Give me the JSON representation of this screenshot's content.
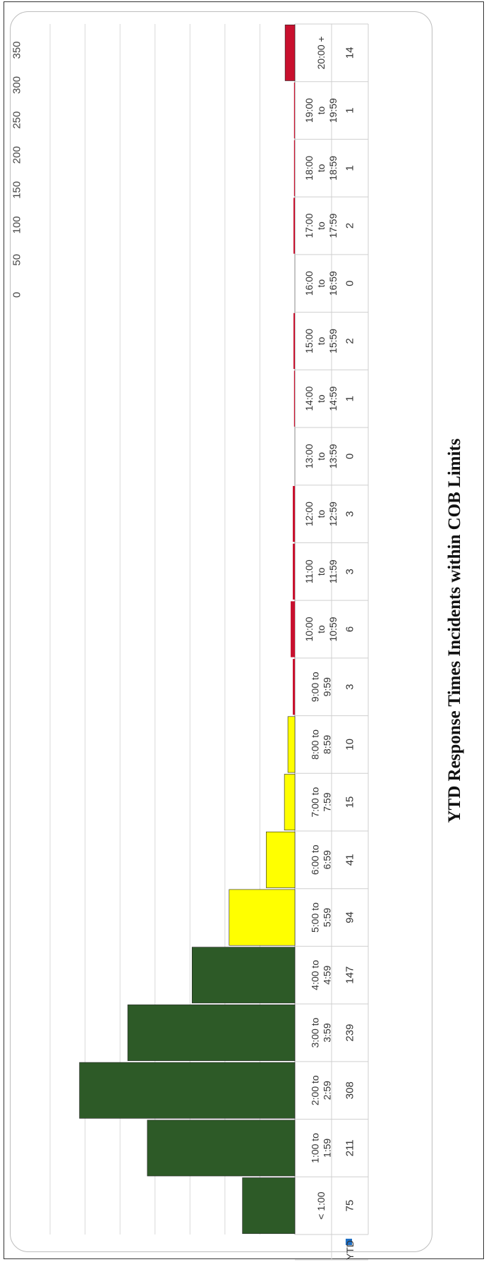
{
  "chart_data": {
    "type": "bar",
    "title": "YTD Response Times Incidents within COB Limits",
    "series_label": "YTD",
    "legend_color": "#1f6fc4",
    "categories": [
      "< 1:00",
      "1:00 to 1:59",
      "2:00 to 2:59",
      "3:00 to 3:59",
      "4:00 to 4:59",
      "5:00 to 5:59",
      "6:00 to 6:59",
      "7:00 to 7:59",
      "8:00 to 8:59",
      "9:00 to 9:59",
      "10:00 to 10:59",
      "11:00 to 11:59",
      "12:00 to 12:59",
      "13:00 to 13:59",
      "14:00 to 14:59",
      "15:00 to 15:59",
      "16:00 to 16:59",
      "17:00 to 17:59",
      "18:00 to 18:59",
      "19:00 to 19:59",
      "20:00 +"
    ],
    "category_lines": [
      [
        "< 1:00"
      ],
      [
        "1:00 to",
        "1:59"
      ],
      [
        "2:00 to",
        "2:59"
      ],
      [
        "3:00 to",
        "3:59"
      ],
      [
        "4:00 to",
        "4:59"
      ],
      [
        "5:00 to",
        "5:59"
      ],
      [
        "6:00 to",
        "6:59"
      ],
      [
        "7:00 to",
        "7:59"
      ],
      [
        "8:00 to",
        "8:59"
      ],
      [
        "9:00 to",
        "9:59"
      ],
      [
        "10:00",
        "to",
        "10:59"
      ],
      [
        "11:00",
        "to",
        "11:59"
      ],
      [
        "12:00",
        "to",
        "12:59"
      ],
      [
        "13:00",
        "to",
        "13:59"
      ],
      [
        "14:00",
        "to",
        "14:59"
      ],
      [
        "15:00",
        "to",
        "15:59"
      ],
      [
        "16:00",
        "to",
        "16:59"
      ],
      [
        "17:00",
        "to",
        "17:59"
      ],
      [
        "18:00",
        "to",
        "18:59"
      ],
      [
        "19:00",
        "to",
        "19:59"
      ],
      [
        "20:00 +"
      ]
    ],
    "values": [
      75,
      211,
      308,
      239,
      147,
      94,
      41,
      15,
      10,
      3,
      6,
      3,
      3,
      0,
      1,
      2,
      0,
      2,
      1,
      1,
      14
    ],
    "bar_colors": [
      "#2d5a27",
      "#2d5a27",
      "#2d5a27",
      "#2d5a27",
      "#2d5a27",
      "#ffff00",
      "#ffff00",
      "#ffff00",
      "#ffff00",
      "#c8102e",
      "#c8102e",
      "#c8102e",
      "#c8102e",
      "#c8102e",
      "#c8102e",
      "#c8102e",
      "#c8102e",
      "#c8102e",
      "#c8102e",
      "#c8102e",
      "#c8102e"
    ],
    "value_axis": {
      "min": 0,
      "max": 350,
      "ticks": [
        0,
        50,
        100,
        150,
        200,
        250,
        300,
        350
      ]
    },
    "grid": true,
    "legend_placement": "in data table"
  }
}
